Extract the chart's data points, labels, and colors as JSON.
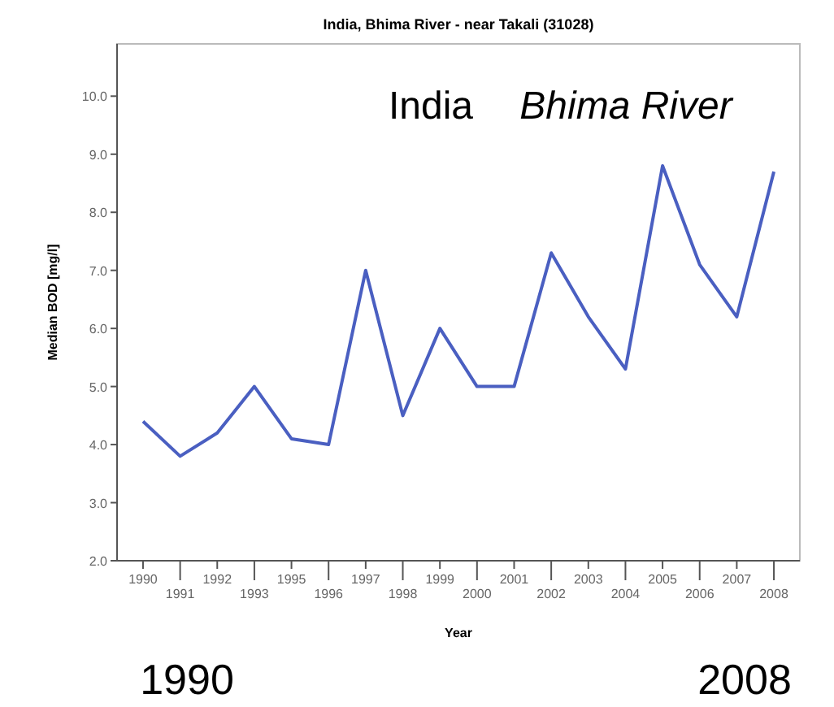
{
  "chart_data": {
    "type": "line",
    "title": "India, Bhima River - near Takali (31028)",
    "xlabel": "Year",
    "ylabel": "Median BOD [mg/l]",
    "categories": [
      "1990",
      "1991",
      "1992",
      "1993",
      "1995",
      "1996",
      "1997",
      "1998",
      "1999",
      "2000",
      "2001",
      "2002",
      "2003",
      "2004",
      "2005",
      "2006",
      "2007",
      "2008"
    ],
    "series": [
      {
        "color": "#4a5fc1",
        "values": [
          4.4,
          3.8,
          4.2,
          5.0,
          4.1,
          4.0,
          7.0,
          4.5,
          6.0,
          5.0,
          5.0,
          7.3,
          6.2,
          5.3,
          8.8,
          7.1,
          6.2,
          8.7
        ]
      }
    ],
    "ylim": [
      2,
      10.9
    ],
    "yticks": [
      {
        "value": 2,
        "label": "2.0"
      },
      {
        "value": 3,
        "label": "3.0"
      },
      {
        "value": 4,
        "label": "4.0"
      },
      {
        "value": 5,
        "label": "5.0"
      },
      {
        "value": 6,
        "label": "6.0"
      },
      {
        "value": 7,
        "label": "7.0"
      },
      {
        "value": 8,
        "label": "8.0"
      },
      {
        "value": 9,
        "label": "9.0"
      },
      {
        "value": 10,
        "label": "10.0"
      }
    ],
    "grid": false,
    "marker": "none",
    "line_style": "solid",
    "annotations": [
      "India",
      "Bhima River",
      "1990",
      "2008"
    ]
  }
}
